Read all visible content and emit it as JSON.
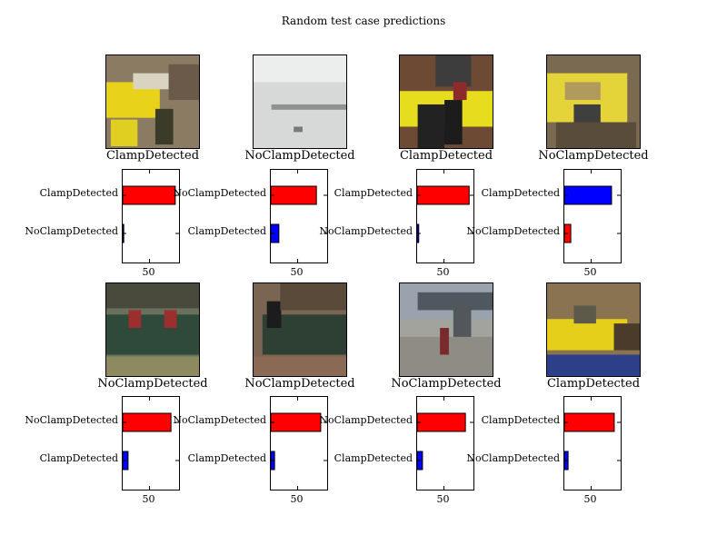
{
  "title": "Random test case predictions",
  "colors": {
    "top_bar": "#ff0000",
    "bottom_bar_blue": "#0000ff"
  },
  "chart_data": [
    {
      "type": "bar",
      "orientation": "horizontal",
      "image_label": "ClampDetected",
      "image_desc": "yellow pipe with clamp and cables",
      "categories": [
        "NoClampDetected",
        "ClampDetected"
      ],
      "values": [
        2,
        98
      ],
      "bar_colors": [
        "#0000ff",
        "#ff0000"
      ],
      "xticks": [
        50
      ],
      "xlim": [
        0,
        105
      ]
    },
    {
      "type": "bar",
      "orientation": "horizontal",
      "image_label": "NoClampDetected",
      "image_desc": "blurry grey pipe",
      "categories": [
        "ClampDetected",
        "NoClampDetected"
      ],
      "values": [
        15,
        85
      ],
      "bar_colors": [
        "#0000ff",
        "#ff0000"
      ],
      "xticks": [
        50
      ],
      "xlim": [
        0,
        105
      ]
    },
    {
      "type": "bar",
      "orientation": "horizontal",
      "image_label": "ClampDetected",
      "image_desc": "yellow pipe with black cables on soil",
      "categories": [
        "NoClampDetected",
        "ClampDetected"
      ],
      "values": [
        3,
        97
      ],
      "bar_colors": [
        "#0000ff",
        "#ff0000"
      ],
      "xticks": [
        50
      ],
      "xlim": [
        0,
        105
      ]
    },
    {
      "type": "bar",
      "orientation": "horizontal",
      "image_label": "NoClampDetected",
      "image_desc": "muddy yellow pipe",
      "categories": [
        "NoClampDetected",
        "ClampDetected"
      ],
      "values": [
        12,
        88
      ],
      "bar_colors": [
        "#ff0000",
        "#0000ff"
      ],
      "xticks": [
        50
      ],
      "xlim": [
        0,
        105
      ]
    },
    {
      "type": "bar",
      "orientation": "horizontal",
      "image_label": "NoClampDetected",
      "image_desc": "dark green pipe with red fittings",
      "categories": [
        "ClampDetected",
        "NoClampDetected"
      ],
      "values": [
        10,
        90
      ],
      "bar_colors": [
        "#0000ff",
        "#ff0000"
      ],
      "xticks": [
        50
      ],
      "xlim": [
        0,
        105
      ]
    },
    {
      "type": "bar",
      "orientation": "horizontal",
      "image_label": "NoClampDetected",
      "image_desc": "dark green pipe with cables on dirt",
      "categories": [
        "ClampDetected",
        "NoClampDetected"
      ],
      "values": [
        7,
        93
      ],
      "bar_colors": [
        "#0000ff",
        "#ff0000"
      ],
      "xticks": [
        50
      ],
      "xlim": [
        0,
        105
      ]
    },
    {
      "type": "bar",
      "orientation": "horizontal",
      "image_label": "NoClampDetected",
      "image_desc": "grey pipe over gravel",
      "categories": [
        "ClampDetected",
        "NoClampDetected"
      ],
      "values": [
        10,
        90
      ],
      "bar_colors": [
        "#0000ff",
        "#ff0000"
      ],
      "xticks": [
        50
      ],
      "xlim": [
        0,
        105
      ]
    },
    {
      "type": "bar",
      "orientation": "horizontal",
      "image_label": "ClampDetected",
      "image_desc": "yellow pipe in trench",
      "categories": [
        "NoClampDetected",
        "ClampDetected"
      ],
      "values": [
        7,
        93
      ],
      "bar_colors": [
        "#0000ff",
        "#ff0000"
      ],
      "xticks": [
        50
      ],
      "xlim": [
        0,
        105
      ]
    }
  ]
}
